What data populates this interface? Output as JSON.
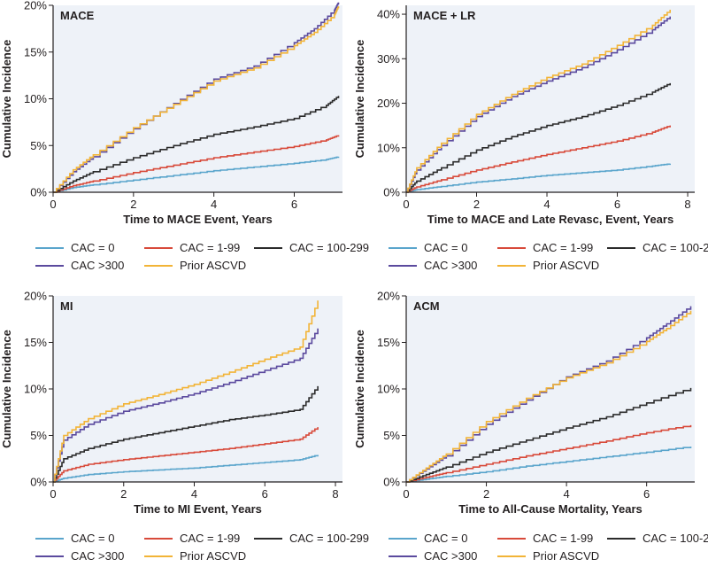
{
  "colors": {
    "panel_bg": "#eef2f8",
    "axis": "#231f20",
    "cac0": "#5aa5cc",
    "cac1_99": "#d84a3a",
    "cac100_299": "#2b2b2b",
    "cac300": "#5b4a9e",
    "prior_ascvd": "#f2b437"
  },
  "legend_items": [
    {
      "key": "cac0",
      "label": "CAC = 0"
    },
    {
      "key": "cac1_99",
      "label": "CAC = 1-99"
    },
    {
      "key": "cac100_299",
      "label": "CAC = 100-299"
    },
    {
      "key": "cac300",
      "label": "CAC >300"
    },
    {
      "key": "prior_ascvd",
      "label": "Prior ASCVD"
    }
  ],
  "chart_data": [
    {
      "type": "line",
      "panel_label": "MACE",
      "xlabel": "Time to MACE Event, Years",
      "ylabel": "Cumulative Incidence",
      "xlim": [
        0,
        7.2
      ],
      "ylim": [
        0,
        20
      ],
      "xticks": [
        0,
        2,
        4,
        6
      ],
      "xtick_labels": [
        "0",
        "2",
        "4",
        "6"
      ],
      "yticks": [
        0,
        5,
        10,
        15,
        20
      ],
      "ytick_labels": [
        "0%",
        "5%",
        "10%",
        "15%",
        "20%"
      ],
      "grid": false,
      "series": [
        {
          "name": "CAC = 0",
          "key": "cac0",
          "x": [
            0,
            0.5,
            1,
            2,
            3,
            4,
            5,
            6,
            6.8,
            7.1
          ],
          "y": [
            0,
            0.5,
            0.8,
            1.3,
            1.8,
            2.3,
            2.7,
            3.1,
            3.5,
            3.8
          ]
        },
        {
          "name": "CAC = 1-99",
          "key": "cac1_99",
          "x": [
            0,
            0.5,
            1,
            2,
            3,
            4,
            5,
            6,
            6.8,
            7.1
          ],
          "y": [
            0,
            0.7,
            1.2,
            2.1,
            2.9,
            3.7,
            4.3,
            4.9,
            5.6,
            6.1
          ]
        },
        {
          "name": "CAC = 100-299",
          "key": "cac100_299",
          "x": [
            0,
            0.5,
            1,
            2,
            3,
            4,
            5,
            6,
            6.8,
            7.1
          ],
          "y": [
            0,
            1.2,
            2.2,
            3.7,
            5.0,
            6.2,
            7.0,
            7.9,
            9.3,
            10.3
          ]
        },
        {
          "name": "CAC >300",
          "key": "cac300",
          "x": [
            0,
            0.5,
            1,
            2,
            3,
            4,
            5,
            6,
            6.5,
            7.0,
            7.1
          ],
          "y": [
            0,
            2.2,
            3.8,
            6.8,
            9.5,
            12.1,
            13.5,
            16.0,
            17.5,
            19.5,
            20.3
          ]
        },
        {
          "name": "Prior ASCVD",
          "key": "prior_ascvd",
          "x": [
            0,
            0.5,
            1,
            2,
            3,
            4,
            5,
            6,
            6.5,
            7.0,
            7.1
          ],
          "y": [
            0,
            2.4,
            4.0,
            6.9,
            9.4,
            11.9,
            13.3,
            15.7,
            17.1,
            19.0,
            19.9
          ]
        }
      ]
    },
    {
      "type": "line",
      "panel_label": "MACE + LR",
      "xlabel": "Time to MACE and Late Revasc, Event, Years",
      "ylabel": "Cumulative Incidence",
      "xlim": [
        0,
        8.2
      ],
      "ylim": [
        0,
        42
      ],
      "xticks": [
        0,
        2,
        4,
        6,
        8
      ],
      "xtick_labels": [
        "0",
        "2",
        "4",
        "6",
        "8"
      ],
      "yticks": [
        0,
        10,
        20,
        30,
        40
      ],
      "ytick_labels": [
        "0%",
        "10%",
        "20%",
        "30%",
        "40%"
      ],
      "grid": false,
      "series": [
        {
          "name": "CAC = 0",
          "key": "cac0",
          "x": [
            0,
            0.3,
            1,
            2,
            3,
            4,
            5,
            6,
            7,
            7.5
          ],
          "y": [
            0,
            0.6,
            1.3,
            2.3,
            3.0,
            3.8,
            4.4,
            5.0,
            5.9,
            6.4
          ]
        },
        {
          "name": "CAC = 1-99",
          "key": "cac1_99",
          "x": [
            0,
            0.3,
            1,
            2,
            3,
            4,
            5,
            6,
            7,
            7.5
          ],
          "y": [
            0,
            1.2,
            2.8,
            5.0,
            6.8,
            8.5,
            10.0,
            11.5,
            13.5,
            15.0
          ]
        },
        {
          "name": "CAC = 100-299",
          "key": "cac100_299",
          "x": [
            0,
            0.3,
            1,
            2,
            3,
            4,
            5,
            6,
            7,
            7.5
          ],
          "y": [
            0,
            2.5,
            5.5,
            9.5,
            12.5,
            15.0,
            17.0,
            19.5,
            22.5,
            24.5
          ]
        },
        {
          "name": "CAC >300",
          "key": "cac300",
          "x": [
            0,
            0.3,
            1,
            2,
            3,
            4,
            5,
            6,
            7,
            7.5
          ],
          "y": [
            0,
            5.0,
            10.5,
            17.0,
            21.5,
            25.0,
            28.0,
            32.0,
            36.5,
            39.5
          ]
        },
        {
          "name": "Prior ASCVD",
          "key": "prior_ascvd",
          "x": [
            0,
            0.3,
            1,
            2,
            3,
            4,
            5,
            6,
            7,
            7.5
          ],
          "y": [
            0,
            5.5,
            11.0,
            17.5,
            22.0,
            25.8,
            28.8,
            33.0,
            37.5,
            41.0
          ]
        }
      ]
    },
    {
      "type": "line",
      "panel_label": "MI",
      "xlabel": "Time to MI Event, Years",
      "ylabel": "Cumulative Incidence",
      "xlim": [
        0,
        8.2
      ],
      "ylim": [
        0,
        20
      ],
      "xticks": [
        0,
        2,
        4,
        6,
        8
      ],
      "xtick_labels": [
        "0",
        "2",
        "4",
        "6",
        "8"
      ],
      "yticks": [
        0,
        5,
        10,
        15,
        20
      ],
      "ytick_labels": [
        "0%",
        "5%",
        "10%",
        "15%",
        "20%"
      ],
      "grid": false,
      "series": [
        {
          "name": "CAC = 0",
          "key": "cac0",
          "x": [
            0,
            0.3,
            1,
            2,
            3,
            4,
            5,
            6,
            7,
            7.5
          ],
          "y": [
            0,
            0.4,
            0.8,
            1.1,
            1.3,
            1.5,
            1.8,
            2.1,
            2.4,
            2.9
          ]
        },
        {
          "name": "CAC = 1-99",
          "key": "cac1_99",
          "x": [
            0,
            0.3,
            1,
            2,
            3,
            4,
            5,
            6,
            7,
            7.5
          ],
          "y": [
            0,
            1.2,
            1.9,
            2.4,
            2.8,
            3.2,
            3.6,
            4.1,
            4.6,
            5.9
          ]
        },
        {
          "name": "CAC = 100-299",
          "key": "cac100_299",
          "x": [
            0,
            0.3,
            1,
            2,
            3,
            4,
            5,
            6,
            7,
            7.5
          ],
          "y": [
            0,
            2.5,
            3.6,
            4.6,
            5.3,
            6.0,
            6.7,
            7.2,
            7.8,
            10.3
          ]
        },
        {
          "name": "CAC >300",
          "key": "cac300",
          "x": [
            0,
            0.3,
            1,
            2,
            3,
            4,
            5,
            6,
            7,
            7.5
          ],
          "y": [
            0,
            4.5,
            6.2,
            7.6,
            8.5,
            9.5,
            10.7,
            12.0,
            13.3,
            16.5
          ]
        },
        {
          "name": "Prior ASCVD",
          "key": "prior_ascvd",
          "x": [
            0,
            0.3,
            1,
            2,
            3,
            4,
            5,
            6,
            7,
            7.5
          ],
          "y": [
            0,
            5.0,
            6.8,
            8.4,
            9.4,
            10.5,
            11.8,
            13.2,
            14.5,
            19.5
          ]
        }
      ]
    },
    {
      "type": "line",
      "panel_label": "ACM",
      "xlabel": "Time to All-Cause Mortality, Years",
      "ylabel": "Cumulative Incidence",
      "xlim": [
        0,
        7.2
      ],
      "ylim": [
        0,
        20
      ],
      "xticks": [
        0,
        2,
        4,
        6
      ],
      "xtick_labels": [
        "0",
        "2",
        "4",
        "6"
      ],
      "yticks": [
        0,
        5,
        10,
        15,
        20
      ],
      "ytick_labels": [
        "0%",
        "5%",
        "10%",
        "15%",
        "20%"
      ],
      "grid": false,
      "series": [
        {
          "name": "CAC = 0",
          "key": "cac0",
          "x": [
            0,
            0.5,
            1,
            2,
            3,
            4,
            5,
            6,
            7.1
          ],
          "y": [
            0,
            0.3,
            0.6,
            1.1,
            1.7,
            2.2,
            2.7,
            3.2,
            3.8
          ]
        },
        {
          "name": "CAC = 1-99",
          "key": "cac1_99",
          "x": [
            0,
            0.5,
            1,
            2,
            3,
            4,
            5,
            6,
            7.1
          ],
          "y": [
            0,
            0.5,
            1.0,
            1.9,
            2.8,
            3.6,
            4.4,
            5.3,
            6.1
          ]
        },
        {
          "name": "CAC = 100-299",
          "key": "cac100_299",
          "x": [
            0,
            0.5,
            1,
            2,
            3,
            4,
            5,
            6,
            7.1
          ],
          "y": [
            0,
            0.8,
            1.6,
            3.2,
            4.5,
            5.8,
            7.0,
            8.5,
            10.1
          ]
        },
        {
          "name": "CAC >300",
          "key": "cac300",
          "x": [
            0,
            0.5,
            1,
            2,
            3,
            4,
            5,
            6,
            6.5,
            7.1
          ],
          "y": [
            0,
            1.4,
            2.8,
            6.2,
            8.8,
            11.3,
            13.0,
            15.5,
            17.0,
            18.9
          ]
        },
        {
          "name": "Prior ASCVD",
          "key": "prior_ascvd",
          "x": [
            0,
            0.5,
            1,
            2,
            3,
            4,
            5,
            6,
            6.5,
            7.1
          ],
          "y": [
            0,
            1.5,
            3.0,
            6.5,
            9.0,
            11.2,
            12.8,
            15.1,
            16.5,
            18.4
          ]
        }
      ]
    }
  ]
}
